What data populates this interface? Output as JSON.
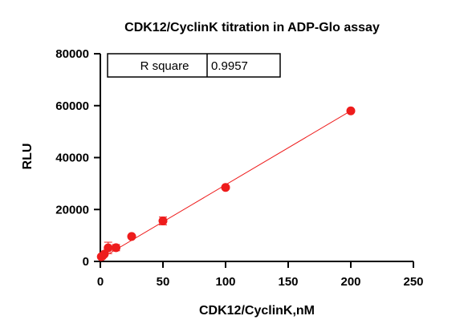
{
  "chart_data": {
    "type": "scatter",
    "title": "CDK12/CyclinK titration in ADP-Glo assay",
    "xlabel": "CDK12/CyclinK,nM",
    "ylabel": "RLU",
    "xlim": [
      0,
      250
    ],
    "ylim": [
      0,
      80000
    ],
    "x_ticks": [
      0,
      50,
      100,
      150,
      200,
      250
    ],
    "y_ticks": [
      0,
      20000,
      40000,
      60000,
      80000
    ],
    "x_tick_labels": [
      "0",
      "50",
      "100",
      "150",
      "200",
      "250"
    ],
    "y_tick_labels": [
      "0",
      "20000",
      "40000",
      "60000",
      "80000"
    ],
    "grid": false,
    "series": [
      {
        "color": "#ee1c1c",
        "points": [
          {
            "x": 0.78,
            "y": 1800,
            "err": 200
          },
          {
            "x": 1.56,
            "y": 2000,
            "err": 300
          },
          {
            "x": 3.125,
            "y": 2800,
            "err": 500
          },
          {
            "x": 6.25,
            "y": 5200,
            "err": 2200
          },
          {
            "x": 12.5,
            "y": 5300,
            "err": 1200
          },
          {
            "x": 25,
            "y": 9600,
            "err": 500
          },
          {
            "x": 50,
            "y": 15600,
            "err": 1500
          },
          {
            "x": 100,
            "y": 28500,
            "err": 500
          },
          {
            "x": 200,
            "y": 58000,
            "err": 500
          }
        ],
        "fit_line": {
          "x": [
            0,
            200
          ],
          "y": [
            1000,
            58000
          ]
        }
      }
    ],
    "stats_table": {
      "label": "R square",
      "value": "0.9957"
    }
  }
}
